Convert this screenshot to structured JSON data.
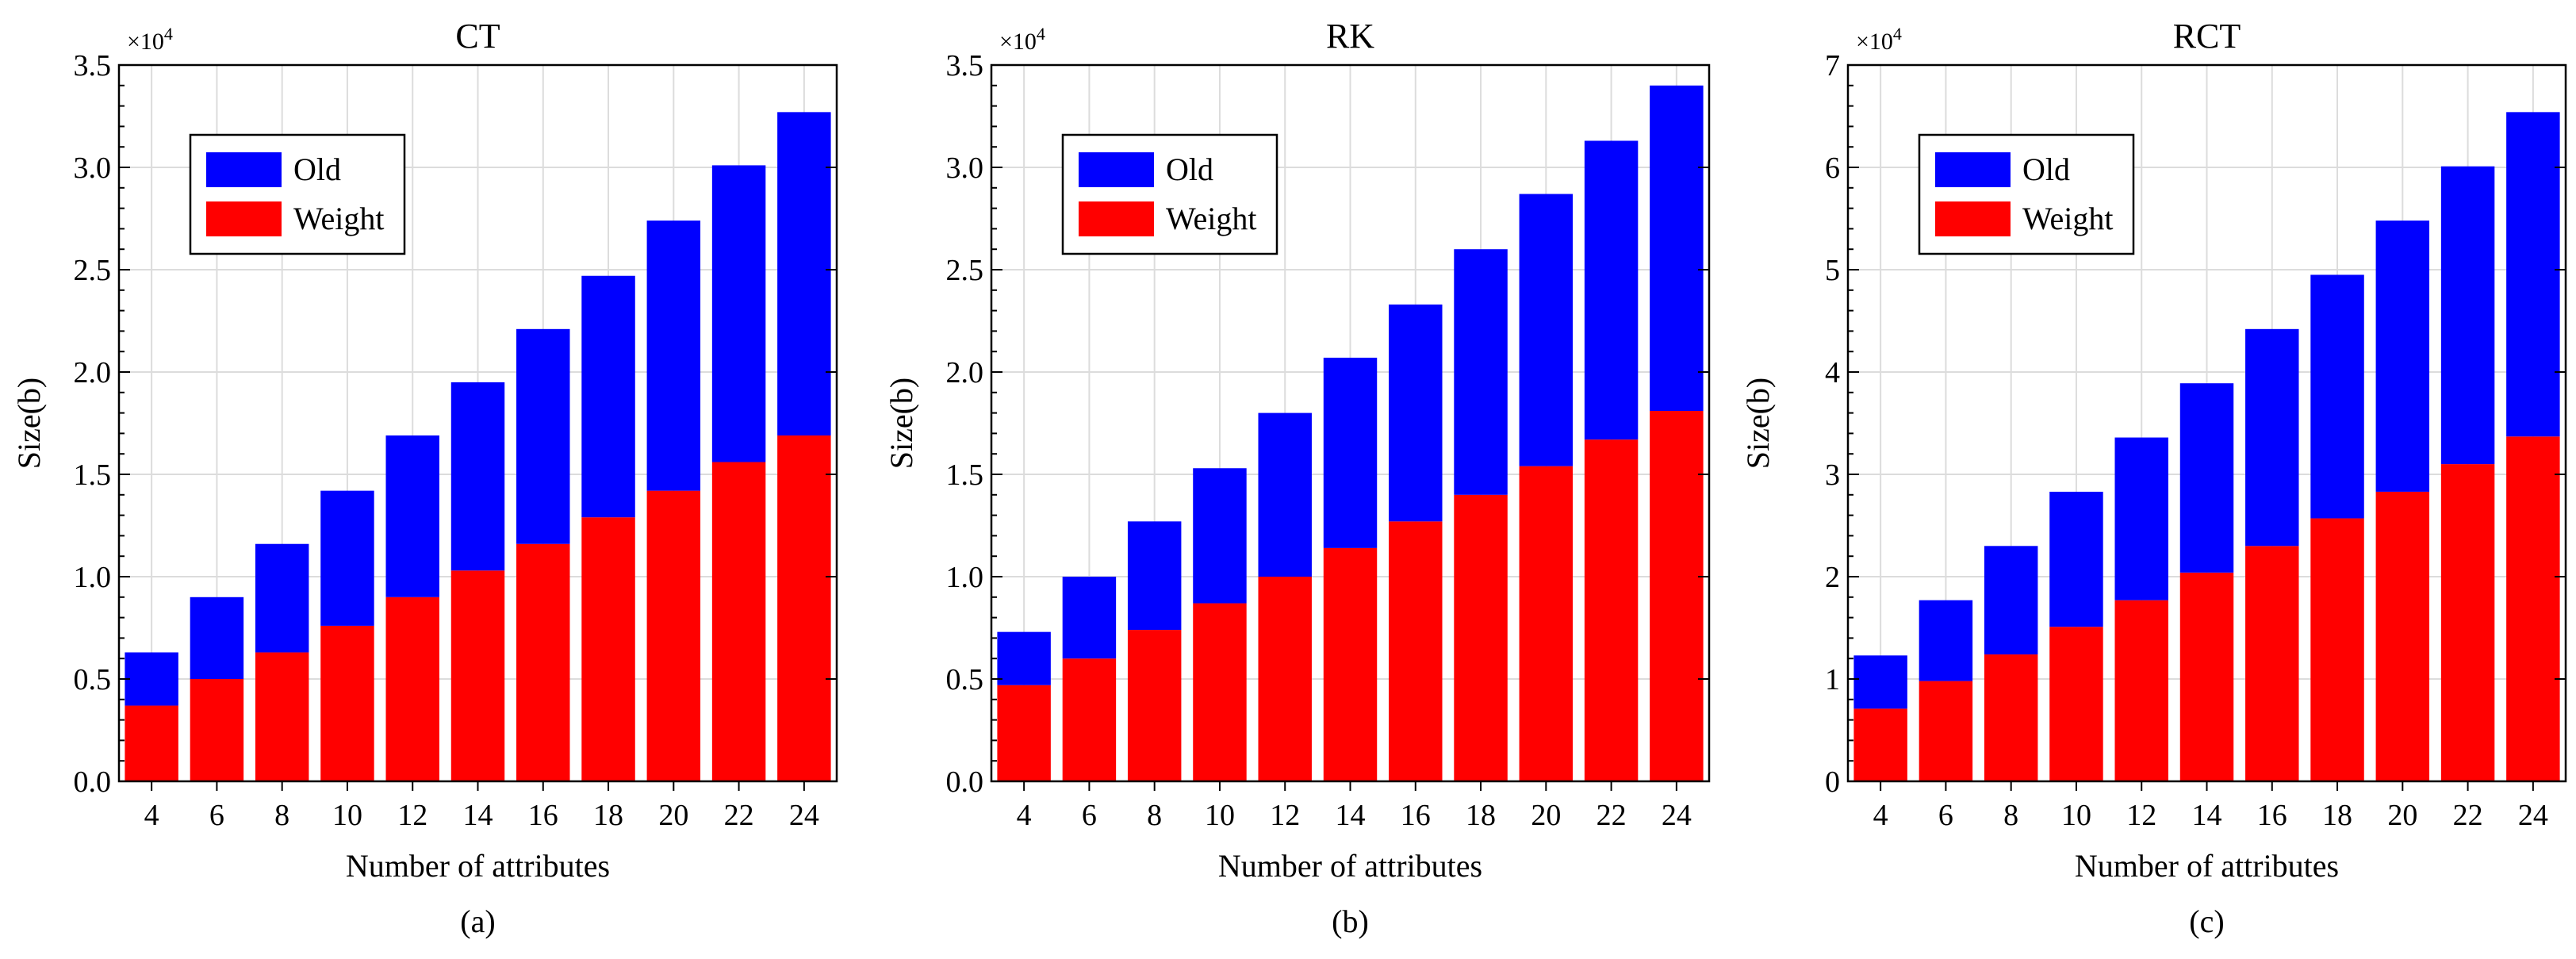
{
  "colors": {
    "old": "#0000ff",
    "weight": "#ff0000",
    "grid": "#dcdcdc",
    "axis": "#000000"
  },
  "chart_data": [
    {
      "type": "bar",
      "stacked": true,
      "title": "CT",
      "caption": "(a)",
      "xlabel": "Number of attributes",
      "ylabel": "Size(b)",
      "multiplier": {
        "base": "×10",
        "exp": "4"
      },
      "categories": [
        "4",
        "6",
        "8",
        "10",
        "12",
        "14",
        "16",
        "18",
        "20",
        "22",
        "24"
      ],
      "ylim": [
        0,
        3.5
      ],
      "yticks": [
        0,
        0.5,
        1.0,
        1.5,
        2.0,
        2.5,
        3.0,
        3.5
      ],
      "ytick_labels": [
        "0.0",
        "0.5",
        "1.0",
        "1.5",
        "2.0",
        "2.5",
        "3.0",
        "3.5"
      ],
      "legend": {
        "position": "top-left",
        "entries": [
          "Old",
          "Weight"
        ]
      },
      "series": [
        {
          "name": "Weight",
          "values": [
            0.37,
            0.5,
            0.63,
            0.76,
            0.9,
            1.03,
            1.16,
            1.29,
            1.42,
            1.56,
            1.69
          ]
        },
        {
          "name": "Old",
          "values": [
            0.26,
            0.4,
            0.53,
            0.66,
            0.79,
            0.92,
            1.05,
            1.18,
            1.32,
            1.45,
            1.58
          ]
        }
      ],
      "totals": [
        0.63,
        0.9,
        1.16,
        1.42,
        1.69,
        1.95,
        2.21,
        2.47,
        2.74,
        3.01,
        3.27
      ]
    },
    {
      "type": "bar",
      "stacked": true,
      "title": "RK",
      "caption": "(b)",
      "xlabel": "Number of attributes",
      "ylabel": "Size(b)",
      "multiplier": {
        "base": "×10",
        "exp": "4"
      },
      "categories": [
        "4",
        "6",
        "8",
        "10",
        "12",
        "14",
        "16",
        "18",
        "20",
        "22",
        "24"
      ],
      "ylim": [
        0,
        3.5
      ],
      "yticks": [
        0,
        0.5,
        1.0,
        1.5,
        2.0,
        2.5,
        3.0,
        3.5
      ],
      "ytick_labels": [
        "0.0",
        "0.5",
        "1.0",
        "1.5",
        "2.0",
        "2.5",
        "3.0",
        "3.5"
      ],
      "legend": {
        "position": "top-left",
        "entries": [
          "Old",
          "Weight"
        ]
      },
      "series": [
        {
          "name": "Weight",
          "values": [
            0.47,
            0.6,
            0.74,
            0.87,
            1.0,
            1.14,
            1.27,
            1.4,
            1.54,
            1.67,
            1.81
          ]
        },
        {
          "name": "Old",
          "values": [
            0.26,
            0.4,
            0.53,
            0.66,
            0.8,
            0.93,
            1.06,
            1.2,
            1.33,
            1.46,
            1.59
          ]
        }
      ],
      "totals": [
        0.73,
        1.0,
        1.27,
        1.53,
        1.8,
        2.07,
        2.33,
        2.6,
        2.87,
        3.13,
        3.4
      ]
    },
    {
      "type": "bar",
      "stacked": true,
      "title": "RCT",
      "caption": "(c)",
      "xlabel": "Number of attributes",
      "ylabel": "Size(b)",
      "multiplier": {
        "base": "×10",
        "exp": "4"
      },
      "categories": [
        "4",
        "6",
        "8",
        "10",
        "12",
        "14",
        "16",
        "18",
        "20",
        "22",
        "24"
      ],
      "ylim": [
        0,
        7
      ],
      "yticks": [
        0,
        1,
        2,
        3,
        4,
        5,
        6,
        7
      ],
      "ytick_labels": [
        "0",
        "1",
        "2",
        "3",
        "4",
        "5",
        "6",
        "7"
      ],
      "legend": {
        "position": "top-left",
        "entries": [
          "Old",
          "Weight"
        ]
      },
      "series": [
        {
          "name": "Weight",
          "values": [
            0.71,
            0.98,
            1.24,
            1.51,
            1.77,
            2.04,
            2.3,
            2.57,
            2.83,
            3.1,
            3.37
          ]
        },
        {
          "name": "Old",
          "values": [
            0.52,
            0.79,
            1.06,
            1.32,
            1.59,
            1.85,
            2.12,
            2.38,
            2.65,
            2.91,
            3.17
          ]
        }
      ],
      "totals": [
        1.23,
        1.77,
        2.3,
        2.83,
        3.36,
        3.89,
        4.42,
        4.95,
        5.48,
        6.01,
        6.54
      ]
    }
  ]
}
